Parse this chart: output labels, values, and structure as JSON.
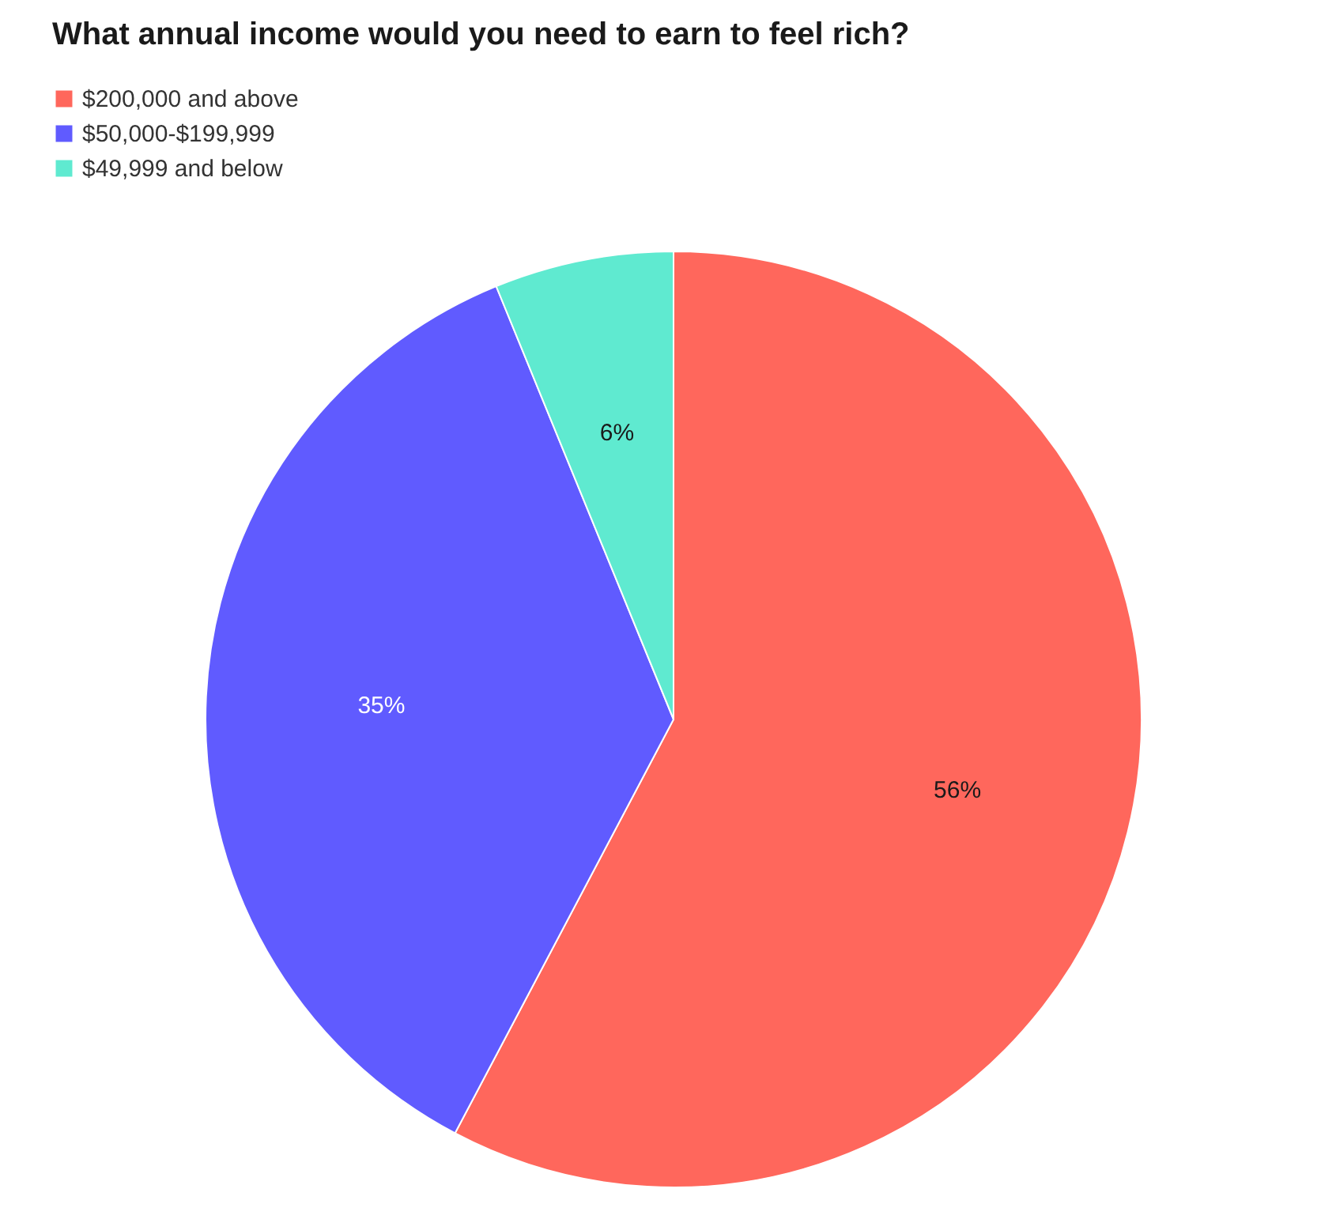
{
  "chart_data": {
    "type": "pie",
    "title": "What annual income would you need to earn to feel rich?",
    "categories": [
      "$200,000 and above",
      "$50,000-$199,999",
      "$49,999 and below"
    ],
    "values": [
      56,
      35,
      6
    ],
    "colors": [
      "#ff675c",
      "#605bff",
      "#5fead0"
    ],
    "value_labels": [
      "56%",
      "35%",
      "6%"
    ],
    "legend": "top left"
  }
}
